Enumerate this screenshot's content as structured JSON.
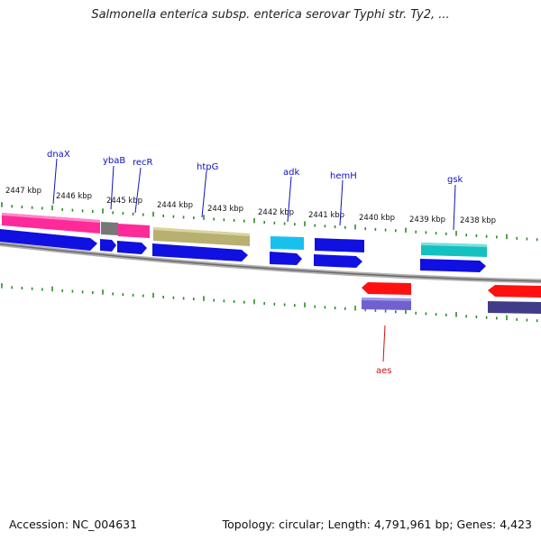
{
  "title": "Salmonella enterica subsp. enterica serovar Typhi str. Ty2, ...",
  "footer": {
    "accession": "Accession: NC_004631",
    "summary": "Topology: circular; Length: 4,791,961 bp; Genes: 4,423"
  },
  "colors": {
    "forward_cds": "#1010e0",
    "reverse_cds": "#ff1010",
    "gene_pink": "#ff2a9a",
    "gene_olive": "#b8b070",
    "gene_cyan": "#18c0ee",
    "gene_teal": "#14c0c0",
    "gene_gray": "#777777",
    "gene_purple": "#7060d0",
    "gene_dark_purple": "#403c88",
    "tick_green": "#2a8a2a",
    "label_blue": "#1010c0",
    "label_red": "#d01010",
    "backbone": "#888888"
  },
  "tick_labels": [
    "2447 kbp",
    "2446 kbp",
    "2445 kbp",
    "2444 kbp",
    "2443 kbp",
    "2442 kbp",
    "2441 kbp",
    "2440 kbp",
    "2439 kbp",
    "2438 kbp"
  ],
  "genes": [
    {
      "name": "dnaX",
      "strand": "forward"
    },
    {
      "name": "ybaB",
      "strand": "forward"
    },
    {
      "name": "recR",
      "strand": "forward"
    },
    {
      "name": "htpG",
      "strand": "forward"
    },
    {
      "name": "adk",
      "strand": "forward"
    },
    {
      "name": "hemH",
      "strand": "forward"
    },
    {
      "name": "gsk",
      "strand": "forward"
    },
    {
      "name": "aes",
      "strand": "reverse"
    }
  ]
}
